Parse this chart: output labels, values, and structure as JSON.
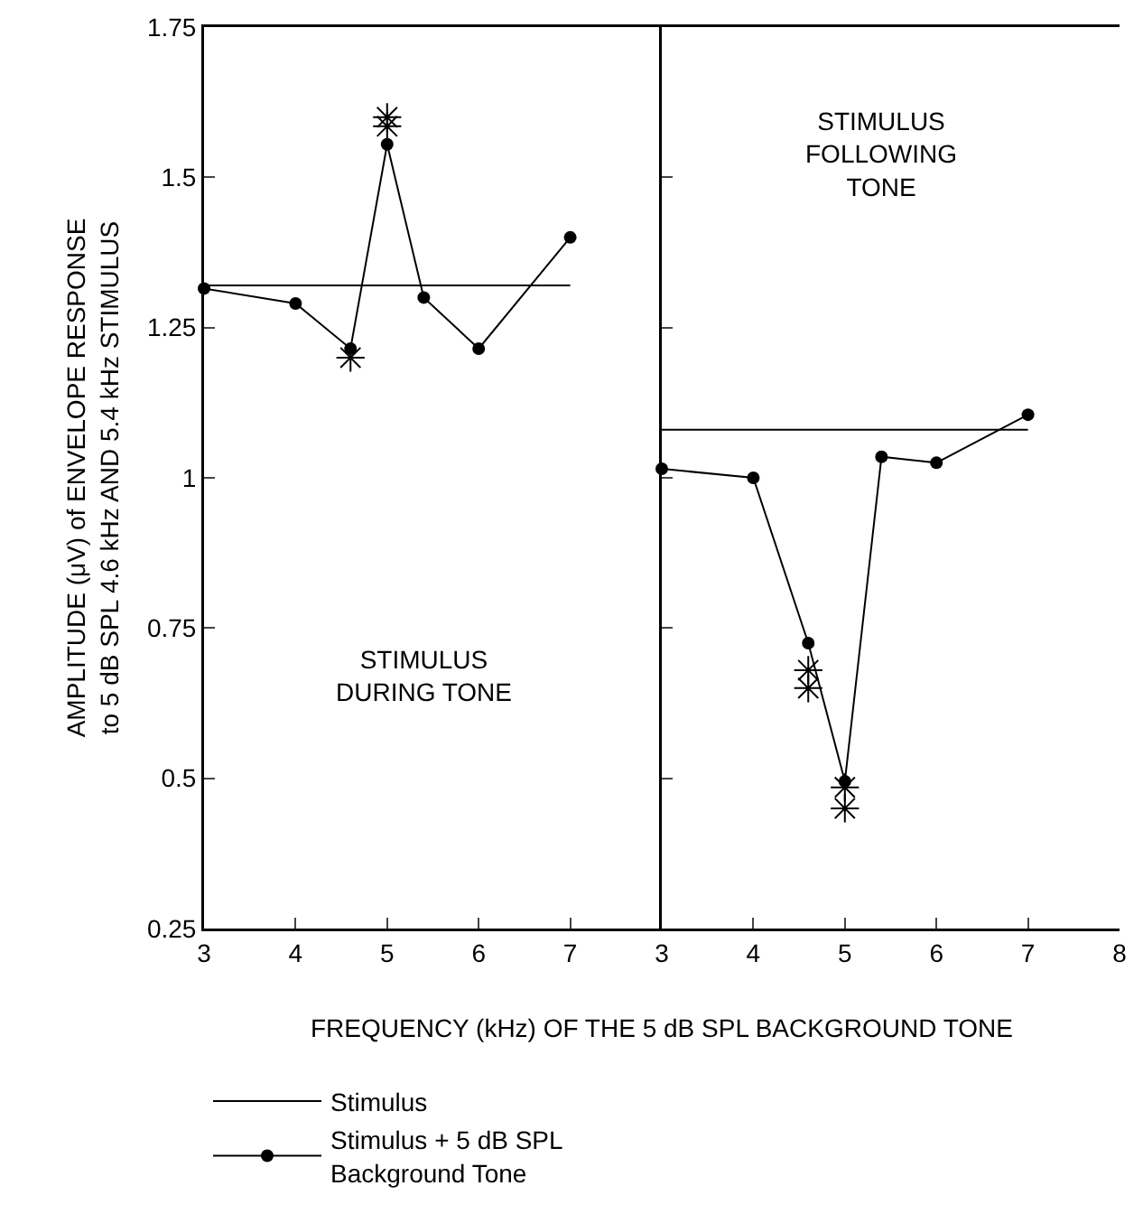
{
  "chart_data": [
    {
      "type": "line",
      "xlabel": "FREQUENCY (kHz) OF THE 5 dB SPL BACKGROUND TONE",
      "ylabel": "AMPLITUDE (μV) of ENVELOPE RESPONSE\nto 5 dB SPL 4.6 kHz AND 5.4 kHz STIMULUS",
      "annotations": [
        "STIMULUS\nDURING TONE"
      ],
      "xlim": [
        3,
        8
      ],
      "xticks": [
        3,
        4,
        5,
        6,
        7
      ],
      "ylim": [
        0.25,
        1.75
      ],
      "yticks": [
        0.25,
        0.5,
        0.75,
        1,
        1.25,
        1.5,
        1.75
      ],
      "grid": false,
      "legend": "bottom",
      "series": [
        {
          "name": "Stimulus",
          "color": "#000000",
          "marker": "none",
          "x": [
            3,
            7
          ],
          "values": [
            1.32,
            1.32
          ]
        },
        {
          "name": "Stimulus + 5 dB SPL\nBackground Tone",
          "color": "#000000",
          "marker": "circle",
          "x": [
            3,
            4,
            4.6,
            5,
            5.4,
            6,
            7
          ],
          "values": [
            1.315,
            1.29,
            1.215,
            1.555,
            1.3,
            1.215,
            1.4
          ]
        },
        {
          "type": "scatter",
          "color": "#000000",
          "marker": "cross",
          "x": [
            4.6,
            5,
            5
          ],
          "values": [
            1.2,
            1.6,
            1.585
          ]
        }
      ]
    },
    {
      "type": "line",
      "annotations": [
        "STIMULUS\nFOLLOWING\nTONE"
      ],
      "xlim": [
        3,
        8
      ],
      "xticks": [
        3,
        4,
        5,
        6,
        7,
        8
      ],
      "ylim": [
        0.25,
        1.75
      ],
      "yticks": [
        0.25,
        0.5,
        0.75,
        1,
        1.25,
        1.5,
        1.75
      ],
      "grid": false,
      "tick_labels": "x",
      "series": [
        {
          "color": "#000000",
          "marker": "none",
          "x": [
            3,
            7
          ],
          "values": [
            1.08,
            1.08
          ]
        },
        {
          "color": "#000000",
          "marker": "circle",
          "x": [
            3,
            4,
            4.6,
            5,
            5.4,
            6,
            7
          ],
          "values": [
            1.015,
            1.0,
            0.725,
            0.495,
            1.035,
            1.025,
            1.105
          ]
        },
        {
          "type": "scatter",
          "color": "#000000",
          "marker": "cross",
          "x": [
            4.6,
            4.6,
            5,
            5
          ],
          "values": [
            0.68,
            0.65,
            0.485,
            0.45
          ]
        }
      ]
    }
  ]
}
